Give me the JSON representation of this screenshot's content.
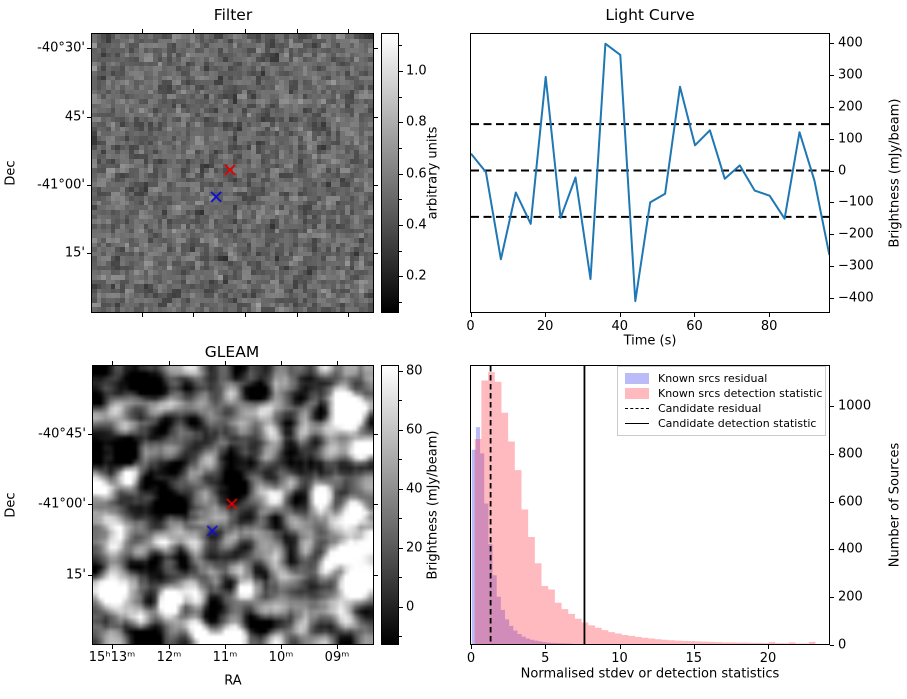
{
  "figure": {
    "background": "#ffffff"
  },
  "chart_data": [
    {
      "type": "heatmap",
      "panel": "top-left",
      "title": "Filter",
      "xlabel": "",
      "ylabel": "Dec",
      "ytick_labels": [
        "-40°30'",
        "45'",
        "-41°00'",
        "15'"
      ],
      "colorbar": {
        "label": "arbitrary units",
        "tick_labels": [
          "1.0",
          "0.8",
          "0.6",
          "0.4",
          "0.2"
        ],
        "range": [
          0.06,
          1.15
        ]
      },
      "image_description": "fine-grained gray random noise map",
      "markers": [
        {
          "name": "candidate-cross",
          "color": "#e60000",
          "fx": 0.491,
          "fy": 0.489
        },
        {
          "name": "known-source-cross",
          "color": "#1010d0",
          "fx": 0.442,
          "fy": 0.586
        }
      ]
    },
    {
      "type": "line",
      "panel": "top-right",
      "title": "Light Curve",
      "xlabel": "Time (s)",
      "ylabel": "Brightness (mJy/beam)",
      "x": [
        0,
        4,
        8,
        12,
        16,
        20,
        24,
        28,
        32,
        36,
        40,
        44,
        48,
        52,
        56,
        60,
        64,
        68,
        72,
        76,
        80,
        84,
        88,
        92,
        96
      ],
      "y": [
        53,
        -5,
        -278,
        -69,
        -167,
        293,
        -148,
        -22,
        -340,
        397,
        362,
        -409,
        -100,
        -73,
        262,
        79,
        126,
        -26,
        16,
        -63,
        -79,
        -151,
        120,
        -31,
        -265
      ],
      "hlines": [
        145,
        0,
        -145
      ],
      "xtick_labels": [
        "0",
        "20",
        "40",
        "60",
        "80"
      ],
      "xticks": [
        0,
        20,
        40,
        60,
        80
      ],
      "ytick_labels": [
        "400",
        "300",
        "200",
        "100",
        "0",
        "−100",
        "−200",
        "−300",
        "−400"
      ],
      "yticks": [
        400,
        300,
        200,
        100,
        0,
        -100,
        -200,
        -300,
        -400
      ],
      "xlim": [
        0,
        96.2
      ],
      "ylim": [
        -447,
        431
      ],
      "line_color": "#1f77b4"
    },
    {
      "type": "heatmap",
      "panel": "bottom-left",
      "title": "GLEAM",
      "xlabel": "RA",
      "ylabel": "Dec",
      "xtick_labels": [
        "15ʰ13ᵐ",
        "12ᵐ",
        "11ᵐ",
        "10ᵐ",
        "09ᵐ"
      ],
      "ytick_labels": [
        "-40°45'",
        "-41°00'",
        "15'"
      ],
      "colorbar": {
        "label": "Brightness (mJy/beam)",
        "tick_labels": [
          "80",
          "60",
          "40",
          "20",
          "0"
        ],
        "range": [
          -13,
          82
        ]
      },
      "image_description": "smoothed grayscale radio sky map with bright compact sources",
      "markers": [
        {
          "name": "candidate-cross",
          "color": "#e60000",
          "fx": 0.496,
          "fy": 0.496
        },
        {
          "name": "known-source-cross",
          "color": "#1010d0",
          "fx": 0.426,
          "fy": 0.593
        }
      ],
      "texture": {
        "bright_spots": [
          {
            "fx": 0.904,
            "fy": 0.161,
            "amp": 160,
            "sig": 2.3
          },
          {
            "fx": 0.801,
            "fy": 0.454,
            "amp": 95,
            "sig": 1.5
          },
          {
            "fx": 0.915,
            "fy": 0.518,
            "amp": 115,
            "sig": 1.8
          },
          {
            "fx": 0.908,
            "fy": 0.661,
            "amp": 105,
            "sig": 1.7
          },
          {
            "fx": 0.926,
            "fy": 0.779,
            "amp": 160,
            "sig": 2.5
          },
          {
            "fx": 0.064,
            "fy": 0.811,
            "amp": 130,
            "sig": 2.0
          },
          {
            "fx": 0.266,
            "fy": 0.829,
            "amp": 115,
            "sig": 1.7
          },
          {
            "fx": 0.525,
            "fy": 0.796,
            "amp": 85,
            "sig": 1.4
          },
          {
            "fx": 0.5,
            "fy": 0.971,
            "amp": 140,
            "sig": 1.7
          },
          {
            "fx": 0.372,
            "fy": 0.957,
            "amp": 75,
            "sig": 1.3
          },
          {
            "fx": 0.95,
            "fy": 0.3,
            "amp": 90,
            "sig": 1.6
          }
        ],
        "dark_spots": [
          {
            "fx": 0.22,
            "fy": 0.06,
            "amp": -75,
            "sig": 2.6
          },
          {
            "fx": 0.58,
            "fy": 0.09,
            "amp": -60,
            "sig": 1.8
          },
          {
            "fx": 0.17,
            "fy": 0.16,
            "amp": -55,
            "sig": 1.9
          },
          {
            "fx": 0.24,
            "fy": 0.47,
            "amp": -55,
            "sig": 1.9
          },
          {
            "fx": 0.49,
            "fy": 0.3,
            "amp": -50,
            "sig": 1.6
          },
          {
            "fx": 0.08,
            "fy": 0.34,
            "amp": -45,
            "sig": 1.9
          },
          {
            "fx": 0.74,
            "fy": 0.1,
            "amp": -50,
            "sig": 1.6
          }
        ]
      }
    },
    {
      "type": "bar",
      "panel": "bottom-right",
      "title": "",
      "xlabel": "Normalised stdev or detection statistics",
      "ylabel": "Number of Sources",
      "xtick_labels": [
        "0",
        "5",
        "10",
        "15",
        "20"
      ],
      "xticks": [
        0,
        5,
        10,
        15,
        20
      ],
      "ytick_labels": [
        "0",
        "200",
        "400",
        "600",
        "800",
        "1000"
      ],
      "yticks": [
        0,
        200,
        400,
        600,
        800,
        1000
      ],
      "xlim": [
        0,
        24.3
      ],
      "ylim": [
        0,
        1166
      ],
      "series": [
        {
          "name": "Known srcs residual",
          "color": "rgba(60,60,235,0.35)",
          "bin_start": 0.05,
          "bin_width": 0.28,
          "values": [
            815,
            910,
            800,
            590,
            420,
            290,
            200,
            145,
            105,
            78,
            58,
            44,
            33,
            25,
            20,
            16,
            13,
            10,
            8,
            7,
            6,
            5,
            4,
            4
          ]
        },
        {
          "name": "Known srcs detection statistic",
          "color": "rgba(255,45,60,0.33)",
          "bin_start": 0.25,
          "bin_width": 0.45,
          "values": [
            860,
            1105,
            1140,
            1100,
            970,
            850,
            730,
            565,
            450,
            340,
            245,
            230,
            175,
            148,
            128,
            108,
            92,
            80,
            70,
            60,
            52,
            46,
            40,
            36,
            32,
            28,
            25,
            22,
            20,
            18,
            16,
            15,
            14,
            13,
            12,
            11,
            10,
            9,
            9,
            8,
            8,
            7,
            7,
            6,
            10,
            5,
            5,
            9,
            4,
            4,
            11
          ]
        }
      ],
      "vlines": [
        {
          "name": "Candidate residual",
          "style": "dashed",
          "x": 1.32
        },
        {
          "name": "Candidate detection statistic",
          "style": "solid",
          "x": 7.64
        }
      ],
      "legend": [
        {
          "label": "Known srcs residual",
          "swatch": "blue-patch"
        },
        {
          "label": "Known srcs detection statistic",
          "swatch": "pink-patch"
        },
        {
          "label": "Candidate residual",
          "swatch": "dashed-line"
        },
        {
          "label": "Candidate detection statistic",
          "swatch": "solid-line"
        }
      ]
    }
  ]
}
